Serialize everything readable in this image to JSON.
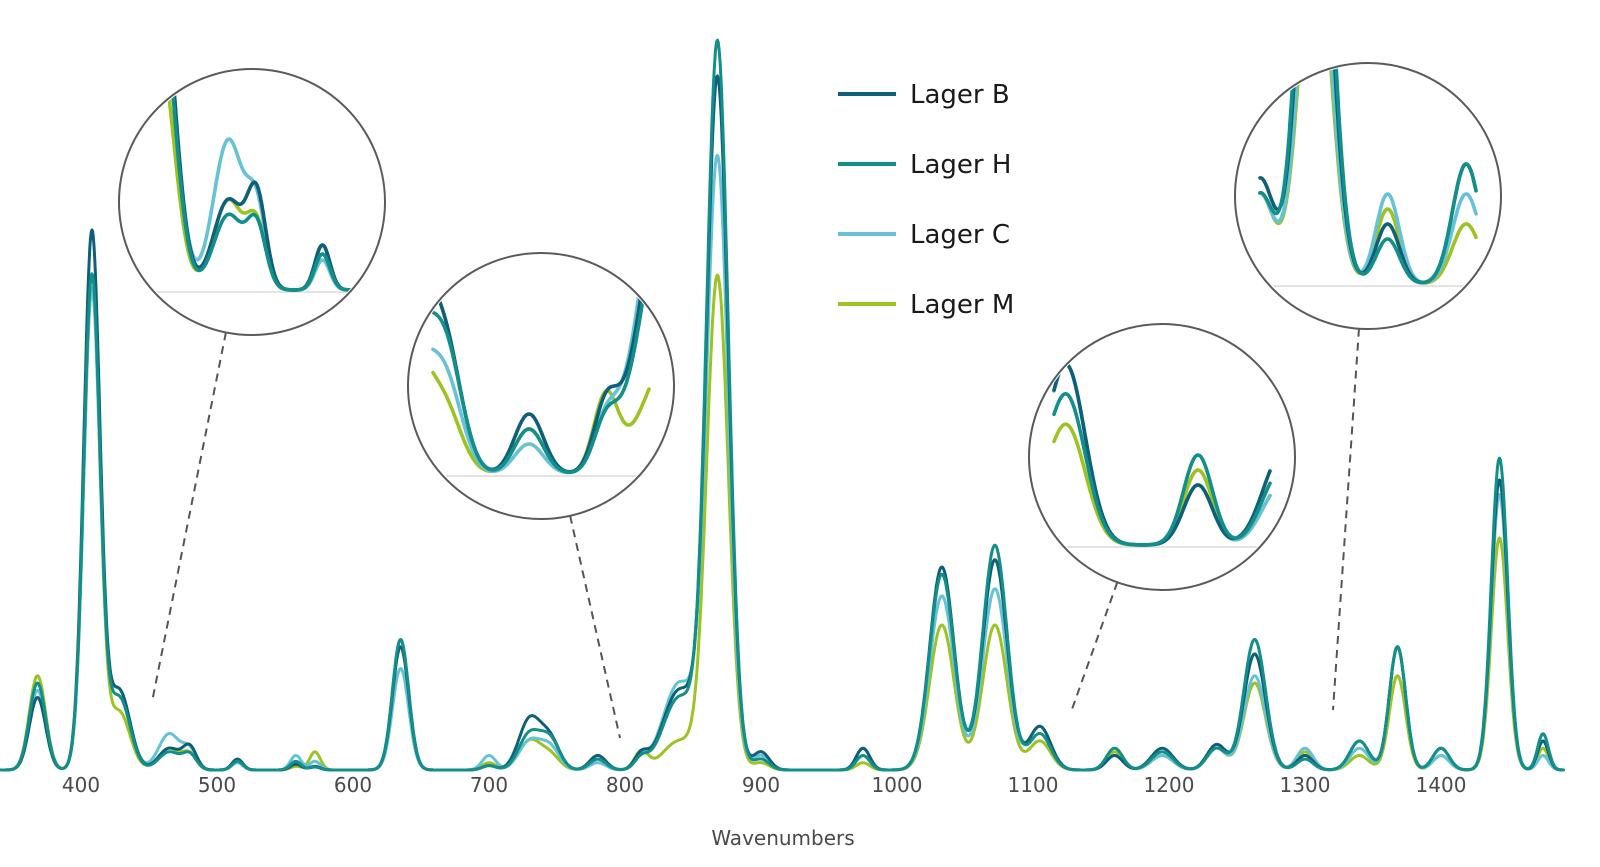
{
  "chart_data": {
    "type": "line",
    "title": "",
    "xlabel": "Wavenumbers",
    "ylabel": "",
    "xlim": [
      340,
      1490
    ],
    "ylim": [
      0,
      100
    ],
    "x_ticks": [
      "400",
      "500",
      "600",
      "700",
      "800",
      "900",
      "1000",
      "1100",
      "1200",
      "1300",
      "1400"
    ],
    "grid": false,
    "legend_position": "top-center",
    "peaks": [
      {
        "x": 368,
        "w": 6,
        "h": [
          10,
          12,
          11,
          13
        ]
      },
      {
        "x": 408,
        "w": 6,
        "h": [
          74,
          68,
          66,
          66
        ]
      },
      {
        "x": 428,
        "w": 8,
        "h": [
          11,
          10,
          11,
          8
        ]
      },
      {
        "x": 465,
        "w": 8,
        "h": [
          3,
          2.5,
          5,
          3
        ]
      },
      {
        "x": 480,
        "w": 5,
        "h": [
          3,
          2,
          2.5,
          2
        ]
      },
      {
        "x": 515,
        "w": 4,
        "h": [
          1.5,
          1.2,
          1,
          1.5
        ]
      },
      {
        "x": 558,
        "w": 4,
        "h": [
          0.8,
          1.2,
          2,
          0.5
        ]
      },
      {
        "x": 572,
        "w": 4,
        "h": [
          0.5,
          0.4,
          1.2,
          2.5
        ]
      },
      {
        "x": 635,
        "w": 6,
        "h": [
          17,
          18,
          14,
          18
        ]
      },
      {
        "x": 700,
        "w": 5,
        "h": [
          0.6,
          0.6,
          2,
          1
        ]
      },
      {
        "x": 730,
        "w": 8,
        "h": [
          7,
          5,
          4,
          4
        ]
      },
      {
        "x": 745,
        "w": 7,
        "h": [
          4,
          4,
          3,
          2
        ]
      },
      {
        "x": 780,
        "w": 6,
        "h": [
          2,
          1.5,
          1,
          1.5
        ]
      },
      {
        "x": 812,
        "w": 5,
        "h": [
          2,
          1.5,
          1.5,
          2.5
        ]
      },
      {
        "x": 840,
        "w": 12,
        "h": [
          11,
          10,
          12,
          4
        ]
      },
      {
        "x": 868,
        "w": 8,
        "h": [
          95,
          100,
          84,
          68
        ]
      },
      {
        "x": 900,
        "w": 6,
        "h": [
          2.5,
          1.5,
          2,
          1
        ]
      },
      {
        "x": 975,
        "w": 5,
        "h": [
          3,
          2,
          3,
          1
        ]
      },
      {
        "x": 1033,
        "w": 9,
        "h": [
          28,
          27,
          24,
          20
        ]
      },
      {
        "x": 1072,
        "w": 9,
        "h": [
          29,
          31,
          25,
          20
        ]
      },
      {
        "x": 1105,
        "w": 8,
        "h": [
          6,
          5,
          6,
          4
        ]
      },
      {
        "x": 1160,
        "w": 6,
        "h": [
          2,
          3,
          2,
          2.5
        ]
      },
      {
        "x": 1195,
        "w": 8,
        "h": [
          3,
          2.5,
          2,
          2
        ]
      },
      {
        "x": 1235,
        "w": 7,
        "h": [
          3.5,
          3,
          3,
          3
        ]
      },
      {
        "x": 1263,
        "w": 8,
        "h": [
          16,
          18,
          13,
          12
        ]
      },
      {
        "x": 1300,
        "w": 6,
        "h": [
          2,
          1.5,
          3,
          2.5
        ]
      },
      {
        "x": 1340,
        "w": 7,
        "h": [
          4,
          4,
          3,
          2
        ]
      },
      {
        "x": 1368,
        "w": 6,
        "h": [
          17,
          17,
          17,
          13
        ]
      },
      {
        "x": 1400,
        "w": 6,
        "h": [
          3,
          3,
          2,
          2
        ]
      },
      {
        "x": 1443,
        "w": 6,
        "h": [
          40,
          43,
          38,
          32
        ]
      },
      {
        "x": 1475,
        "w": 4,
        "h": [
          4,
          5,
          2,
          3
        ]
      }
    ],
    "series": [
      {
        "name": "Lager B",
        "color": "#0f5f78"
      },
      {
        "name": "Lager H",
        "color": "#138f8a"
      },
      {
        "name": "Lager C",
        "color": "#67c2d8"
      },
      {
        "name": "Lager M",
        "color": "#9cc322"
      }
    ],
    "zoom_insets": [
      {
        "name": "zoom-inset-1",
        "range": [
          420,
          535
        ],
        "peak_x": 452
      },
      {
        "name": "zoom-inset-2",
        "range": [
          740,
          830
        ],
        "peak_x": 797
      },
      {
        "name": "zoom-inset-3",
        "range": [
          1100,
          1190
        ],
        "peak_x": 1125
      },
      {
        "name": "zoom-inset-4",
        "range": [
          1235,
          1345
        ],
        "peak_x": 1318
      }
    ]
  }
}
